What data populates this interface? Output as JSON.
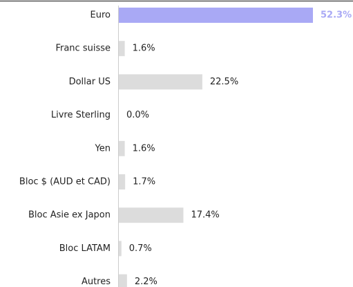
{
  "chart_data": {
    "type": "hbar",
    "categories": [
      "Euro",
      "Franc suisse",
      "Dollar US",
      "Livre Sterling",
      "Yen",
      "Bloc $ (AUD et CAD)",
      "Bloc Asie ex Japon",
      "Bloc LATAM",
      "Autres"
    ],
    "values": [
      52.3,
      1.6,
      22.5,
      0.0,
      1.6,
      1.7,
      17.4,
      0.7,
      2.2
    ],
    "value_labels": [
      "52.3%",
      "1.6%",
      "22.5%",
      "0.0%",
      "1.6%",
      "1.7%",
      "17.4%",
      "0.7%",
      "2.2%"
    ],
    "colors": [
      "#a9a9f5",
      "#dcdcdc",
      "#dcdcdc",
      "#dcdcdc",
      "#dcdcdc",
      "#dcdcdc",
      "#dcdcdc",
      "#dcdcdc",
      "#dcdcdc"
    ]
  }
}
